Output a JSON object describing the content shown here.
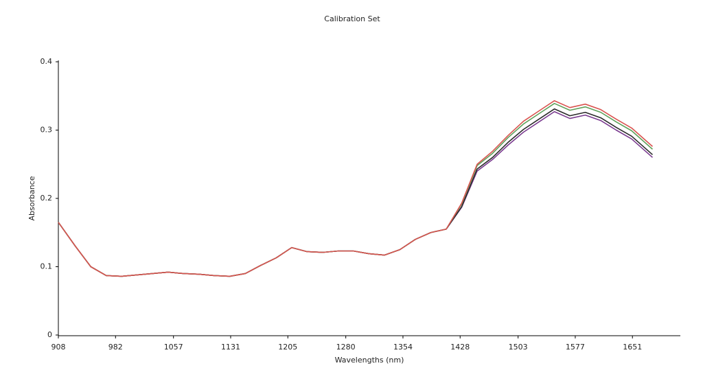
{
  "chart_data": {
    "type": "line",
    "title": "Calibration Set",
    "x_label": "Wavelengths (nm)",
    "y_label": "Absorbance",
    "x": [
      908,
      930,
      950,
      970,
      990,
      1010,
      1030,
      1050,
      1070,
      1090,
      1110,
      1130,
      1150,
      1170,
      1190,
      1210,
      1230,
      1250,
      1270,
      1290,
      1310,
      1330,
      1350,
      1370,
      1390,
      1410,
      1430,
      1450,
      1470,
      1490,
      1510,
      1530,
      1550,
      1570,
      1590,
      1610,
      1630,
      1650,
      1677
    ],
    "series": [
      {
        "color": "#7a3b8f",
        "values": [
          0.165,
          0.13,
          0.1,
          0.087,
          0.086,
          0.088,
          0.09,
          0.092,
          0.09,
          0.089,
          0.087,
          0.086,
          0.09,
          0.102,
          0.113,
          0.128,
          0.122,
          0.121,
          0.123,
          0.123,
          0.119,
          0.117,
          0.125,
          0.14,
          0.15,
          0.155,
          0.187,
          0.24,
          0.257,
          0.278,
          0.297,
          0.312,
          0.327,
          0.317,
          0.322,
          0.314,
          0.3,
          0.287,
          0.26
        ]
      },
      {
        "color": "#2a2a2a",
        "values": [
          0.165,
          0.13,
          0.1,
          0.087,
          0.086,
          0.088,
          0.09,
          0.092,
          0.09,
          0.089,
          0.087,
          0.086,
          0.09,
          0.102,
          0.113,
          0.128,
          0.122,
          0.121,
          0.123,
          0.123,
          0.119,
          0.117,
          0.125,
          0.14,
          0.15,
          0.155,
          0.188,
          0.243,
          0.26,
          0.282,
          0.301,
          0.316,
          0.331,
          0.321,
          0.326,
          0.318,
          0.304,
          0.291,
          0.264
        ]
      },
      {
        "color": "#5fa05a",
        "values": [
          0.165,
          0.13,
          0.1,
          0.087,
          0.086,
          0.088,
          0.09,
          0.092,
          0.09,
          0.089,
          0.087,
          0.086,
          0.09,
          0.102,
          0.113,
          0.128,
          0.122,
          0.121,
          0.123,
          0.123,
          0.119,
          0.117,
          0.125,
          0.14,
          0.15,
          0.155,
          0.192,
          0.248,
          0.266,
          0.289,
          0.309,
          0.324,
          0.339,
          0.329,
          0.334,
          0.326,
          0.312,
          0.299,
          0.272
        ]
      },
      {
        "color": "#d9534f",
        "values": [
          0.165,
          0.13,
          0.1,
          0.087,
          0.086,
          0.088,
          0.09,
          0.092,
          0.09,
          0.089,
          0.087,
          0.086,
          0.09,
          0.102,
          0.113,
          0.128,
          0.122,
          0.121,
          0.123,
          0.123,
          0.119,
          0.117,
          0.125,
          0.14,
          0.15,
          0.155,
          0.193,
          0.25,
          0.269,
          0.292,
          0.313,
          0.328,
          0.343,
          0.333,
          0.338,
          0.33,
          0.316,
          0.303,
          0.276
        ]
      }
    ],
    "xlim": [
      908,
      1713
    ],
    "xticks": [
      908,
      982,
      1057,
      1131,
      1205,
      1280,
      1354,
      1428,
      1503,
      1577,
      1651
    ],
    "ylim": [
      0,
      0.4
    ],
    "yticks": [
      0,
      0.1,
      0.2,
      0.3,
      0.4
    ],
    "grid": false
  }
}
